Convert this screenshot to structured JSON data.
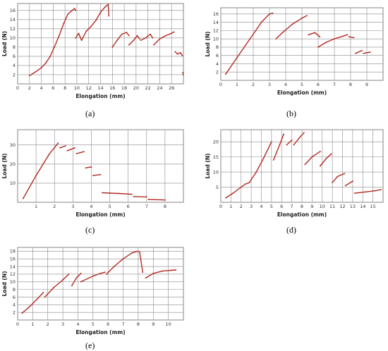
{
  "colors": {
    "curve": "#b22a22",
    "grid": "#8a8a8a",
    "frame": "#666666"
  },
  "chart_data": [
    {
      "type": "line",
      "caption": "(a)",
      "xlabel": "Elongation (mm)",
      "ylabel": "Load (N)",
      "xlim": [
        0,
        28
      ],
      "ylim": [
        0,
        17.5
      ],
      "xticks": [
        0,
        2,
        4,
        6,
        8,
        10,
        12,
        14,
        16,
        18,
        20,
        22,
        24,
        26
      ],
      "yticks": [
        2,
        4,
        6,
        8,
        10,
        12,
        14,
        16
      ],
      "series": [
        {
          "x": [
            2.0,
            3.0,
            4.0,
            4.8,
            5.5,
            6.2,
            7.0,
            7.8,
            8.5,
            9.2,
            9.6,
            9.8
          ],
          "y": [
            1.8,
            2.6,
            3.5,
            4.6,
            6.0,
            8.0,
            10.5,
            13.2,
            15.2,
            16.0,
            16.4,
            16.0
          ]
        },
        {
          "x": [
            9.8,
            10.3,
            10.8,
            11.6,
            12.4,
            13.2,
            14.0,
            14.8,
            15.3,
            15.4
          ],
          "y": [
            10.0,
            11.0,
            9.5,
            11.5,
            12.5,
            13.8,
            15.6,
            16.8,
            17.3,
            14.8
          ]
        },
        {
          "x": [
            16.0,
            16.8,
            17.6,
            18.4,
            18.8
          ],
          "y": [
            8.0,
            9.5,
            10.8,
            11.2,
            10.5
          ]
        },
        {
          "x": [
            18.8,
            19.6,
            20.2,
            20.6
          ],
          "y": [
            8.5,
            9.5,
            10.5,
            9.8
          ]
        },
        {
          "x": [
            20.8,
            21.6,
            22.4,
            22.8
          ],
          "y": [
            9.5,
            10.0,
            10.8,
            10.0
          ]
        },
        {
          "x": [
            23.0,
            24.0,
            25.0,
            26.0,
            26.4
          ],
          "y": [
            8.5,
            9.8,
            10.5,
            11.0,
            11.3
          ]
        },
        {
          "x": [
            26.6,
            27.0,
            27.5,
            27.8
          ],
          "y": [
            7.0,
            6.5,
            6.8,
            6.2
          ]
        },
        {
          "x": [
            27.9,
            28.0
          ],
          "y": [
            2.5,
            2.0
          ]
        }
      ]
    },
    {
      "type": "line",
      "caption": "(b)",
      "xlabel": "Elongation (mm)",
      "ylabel": "Load (N)",
      "xlim": [
        0,
        10
      ],
      "ylim": [
        0,
        17.5
      ],
      "xticks": [
        0,
        1,
        2,
        3,
        4,
        5,
        6,
        7,
        8,
        9
      ],
      "yticks": [
        2,
        4,
        6,
        8,
        10,
        12,
        14,
        16
      ],
      "series": [
        {
          "x": [
            0.3,
            1.0,
            1.8,
            2.5,
            3.0,
            3.2
          ],
          "y": [
            1.5,
            5.5,
            10.0,
            14.0,
            16.0,
            16.2
          ]
        },
        {
          "x": [
            3.4,
            3.8,
            4.4,
            5.0,
            5.3
          ],
          "y": [
            10.0,
            11.5,
            13.5,
            15.0,
            15.6
          ]
        },
        {
          "x": [
            5.4,
            5.8,
            6.1
          ],
          "y": [
            11.0,
            11.5,
            10.5
          ]
        },
        {
          "x": [
            6.0,
            6.5,
            7.0,
            7.5,
            7.8
          ],
          "y": [
            8.0,
            9.2,
            10.0,
            10.6,
            11.0
          ]
        },
        {
          "x": [
            7.9,
            8.2
          ],
          "y": [
            10.5,
            10.3
          ]
        },
        {
          "x": [
            8.3,
            8.7
          ],
          "y": [
            6.5,
            7.2
          ]
        },
        {
          "x": [
            8.8,
            9.2
          ],
          "y": [
            6.5,
            6.8
          ]
        }
      ]
    },
    {
      "type": "line",
      "caption": "(c)",
      "xlabel": "Elongation (mm)",
      "ylabel": "Load (N)",
      "xlim": [
        0,
        9
      ],
      "ylim": [
        0,
        38
      ],
      "xticks": [
        1,
        2,
        3,
        4,
        5,
        6,
        7,
        8
      ],
      "yticks": [
        10,
        20,
        30
      ],
      "series": [
        {
          "x": [
            0.3,
            1.0,
            1.7,
            2.2
          ],
          "y": [
            2.0,
            14.0,
            25.0,
            31.0
          ]
        },
        {
          "x": [
            2.3,
            2.6
          ],
          "y": [
            28.5,
            29.5
          ]
        },
        {
          "x": [
            2.7,
            3.1
          ],
          "y": [
            27.0,
            28.5
          ]
        },
        {
          "x": [
            3.2,
            3.6
          ],
          "y": [
            25.5,
            26.5
          ]
        },
        {
          "x": [
            3.7,
            4.0
          ],
          "y": [
            18.0,
            18.5
          ]
        },
        {
          "x": [
            4.1,
            4.5
          ],
          "y": [
            14.0,
            14.5
          ]
        },
        {
          "x": [
            4.6,
            5.0,
            5.5,
            6.2
          ],
          "y": [
            5.0,
            4.8,
            4.6,
            4.2
          ]
        },
        {
          "x": [
            6.3,
            7.0
          ],
          "y": [
            3.0,
            2.8
          ]
        },
        {
          "x": [
            7.1,
            8.0
          ],
          "y": [
            1.5,
            1.2
          ]
        }
      ]
    },
    {
      "type": "line",
      "caption": "(d)",
      "xlabel": "Elongation (mm)",
      "ylabel": "Load (N)",
      "xlim": [
        0,
        16
      ],
      "ylim": [
        0,
        24
      ],
      "xticks": [
        0,
        1,
        2,
        3,
        4,
        5,
        6,
        7,
        8,
        9,
        10,
        11,
        12,
        13,
        14,
        15
      ],
      "yticks": [
        5,
        10,
        15,
        20
      ],
      "series": [
        {
          "x": [
            0.5,
            1.2,
            2.0,
            2.4,
            2.8,
            3.5,
            4.2,
            5.0
          ],
          "y": [
            1.5,
            3.0,
            5.0,
            6.0,
            6.5,
            10.0,
            14.5,
            20.0
          ]
        },
        {
          "x": [
            5.2,
            5.8,
            6.2
          ],
          "y": [
            14.0,
            19.0,
            22.5
          ]
        },
        {
          "x": [
            6.5,
            7.0
          ],
          "y": [
            19.0,
            20.5
          ]
        },
        {
          "x": [
            7.2,
            7.8,
            8.2
          ],
          "y": [
            19.0,
            21.5,
            23.0
          ]
        },
        {
          "x": [
            8.3,
            9.0,
            9.8
          ],
          "y": [
            12.5,
            15.0,
            16.8
          ]
        },
        {
          "x": [
            9.8,
            10.4,
            10.9
          ],
          "y": [
            12.0,
            14.5,
            16.0
          ]
        },
        {
          "x": [
            11.0,
            11.5,
            12.2
          ],
          "y": [
            6.5,
            8.5,
            9.5
          ]
        },
        {
          "x": [
            12.3,
            13.0
          ],
          "y": [
            5.5,
            7.0
          ]
        },
        {
          "x": [
            13.2,
            14.2,
            15.2,
            15.8
          ],
          "y": [
            3.0,
            3.4,
            3.8,
            4.2
          ]
        }
      ]
    },
    {
      "type": "line",
      "caption": "(e)",
      "xlabel": "Elongation (mm)",
      "ylabel": "Load (N)",
      "xlim": [
        0,
        11
      ],
      "ylim": [
        0,
        19
      ],
      "xticks": [
        0,
        1,
        2,
        3,
        4,
        5,
        6,
        7,
        8,
        9,
        10
      ],
      "yticks": [
        2,
        4,
        6,
        8,
        10,
        12,
        14,
        16,
        18
      ],
      "series": [
        {
          "x": [
            0.3,
            0.8,
            1.3,
            1.7
          ],
          "y": [
            1.8,
            3.5,
            5.5,
            7.2
          ]
        },
        {
          "x": [
            1.8,
            2.4,
            3.0,
            3.4
          ],
          "y": [
            6.0,
            8.5,
            10.5,
            12.0
          ]
        },
        {
          "x": [
            3.6,
            3.9,
            4.2
          ],
          "y": [
            9.0,
            11.0,
            12.2
          ]
        },
        {
          "x": [
            4.2,
            5.0,
            5.5,
            5.8
          ],
          "y": [
            10.0,
            11.5,
            12.2,
            12.5
          ]
        },
        {
          "x": [
            5.9,
            6.4,
            7.0,
            7.6,
            8.0
          ],
          "y": [
            12.0,
            14.0,
            16.0,
            17.6,
            18.0
          ]
        },
        {
          "x": [
            8.1,
            8.3
          ],
          "y": [
            17.8,
            12.5
          ]
        },
        {
          "x": [
            8.5,
            9.0,
            9.6,
            10.2,
            10.5
          ],
          "y": [
            11.0,
            12.2,
            12.8,
            13.0,
            13.1
          ]
        }
      ]
    }
  ]
}
